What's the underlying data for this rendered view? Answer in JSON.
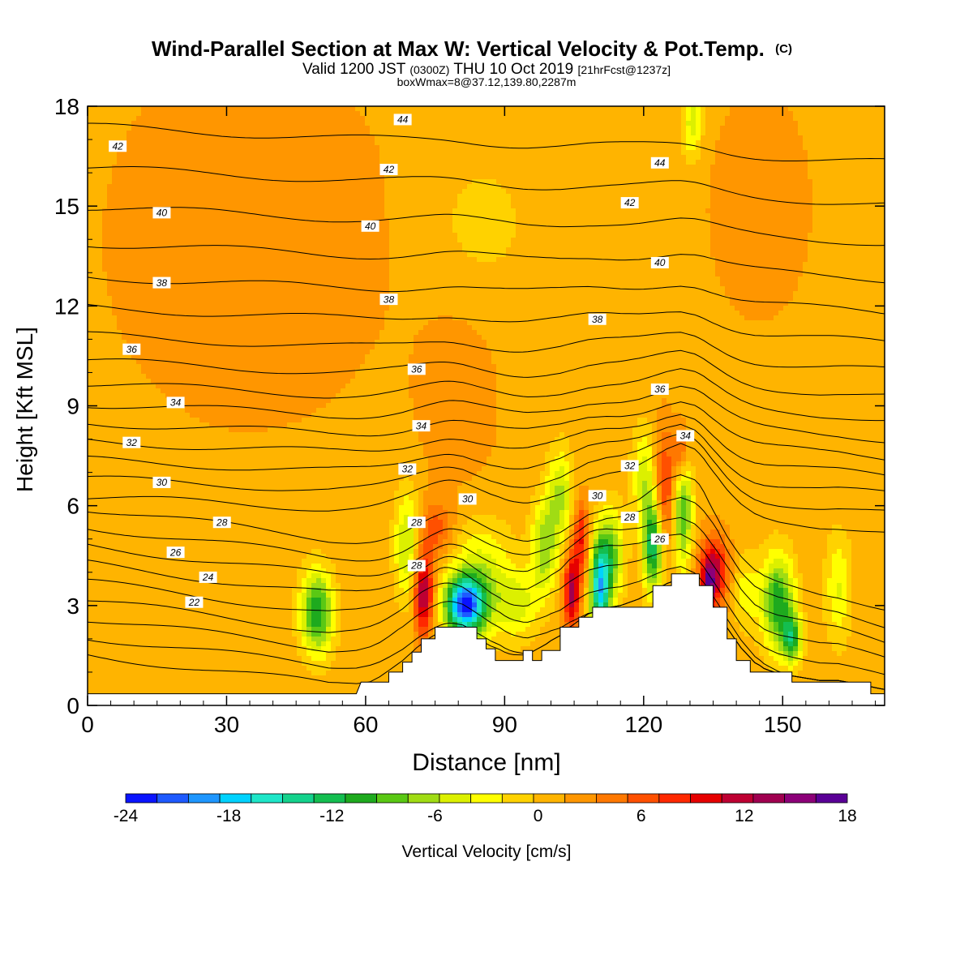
{
  "chart_data": {
    "type": "heatmap",
    "title": "Wind-Parallel Section at Max W: Vertical Velocity & Pot.Temp.",
    "title_mark": "(C)",
    "subtitle_main": "Valid 1200 JST",
    "subtitle_z": "(0300Z)",
    "subtitle_date": "THU 10 Oct 2019",
    "subtitle_fcst": "[21hrFcst@1237z]",
    "subtitle2": "boxWmax=8@37.12,139.80,2287m",
    "xlabel": "Distance [nm]",
    "ylabel": "Height [Kft MSL]",
    "xlim": [
      0,
      172
    ],
    "ylim": [
      0,
      18
    ],
    "x_ticks": [
      "0",
      "30",
      "60",
      "90",
      "120",
      "150"
    ],
    "x_tick_values": [
      0,
      30,
      60,
      90,
      120,
      150
    ],
    "y_ticks": [
      "0",
      "3",
      "6",
      "9",
      "12",
      "15",
      "18"
    ],
    "y_tick_values": [
      0,
      3,
      6,
      9,
      12,
      15,
      18
    ],
    "colorbar": {
      "label": "Vertical Velocity [cm/s]",
      "ticks": [
        "-24",
        "-18",
        "-12",
        "-6",
        "0",
        "6",
        "12",
        "18"
      ],
      "tick_values": [
        -24,
        -18,
        -12,
        -6,
        0,
        6,
        12,
        18
      ],
      "bounds": [
        -24,
        18
      ],
      "colors": [
        "#0a14ff",
        "#1e5aff",
        "#1e96ff",
        "#00d2ff",
        "#1ee6c8",
        "#14d28c",
        "#14be50",
        "#1eaa1e",
        "#5ac814",
        "#a0dc14",
        "#dcf000",
        "#ffff00",
        "#ffd200",
        "#ffb400",
        "#ff9600",
        "#ff7800",
        "#ff5000",
        "#ff2800",
        "#e60000",
        "#be0032",
        "#a00050",
        "#8c0078",
        "#5a0096"
      ]
    },
    "terrain": [
      [
        0,
        0.35
      ],
      [
        57,
        0.35
      ],
      [
        58,
        0.35
      ],
      [
        59,
        0.7
      ],
      [
        65,
        0.7
      ],
      [
        65,
        1.0
      ],
      [
        68,
        1.0
      ],
      [
        68,
        1.3
      ],
      [
        70,
        1.3
      ],
      [
        70,
        1.6
      ],
      [
        72,
        1.6
      ],
      [
        72,
        2.0
      ],
      [
        75,
        2.0
      ],
      [
        75,
        2.35
      ],
      [
        84,
        2.35
      ],
      [
        84,
        2.0
      ],
      [
        86,
        2.0
      ],
      [
        86,
        1.7
      ],
      [
        88,
        1.7
      ],
      [
        88,
        1.35
      ],
      [
        94,
        1.35
      ],
      [
        94,
        1.65
      ],
      [
        96,
        1.65
      ],
      [
        96,
        1.35
      ],
      [
        98,
        1.35
      ],
      [
        98,
        1.65
      ],
      [
        102,
        1.65
      ],
      [
        102,
        2.35
      ],
      [
        106,
        2.35
      ],
      [
        106,
        2.65
      ],
      [
        109,
        2.65
      ],
      [
        109,
        2.95
      ],
      [
        122,
        2.95
      ],
      [
        122,
        3.6
      ],
      [
        126,
        3.6
      ],
      [
        126,
        3.95
      ],
      [
        132,
        3.95
      ],
      [
        132,
        3.6
      ],
      [
        135,
        3.6
      ],
      [
        135,
        2.95
      ],
      [
        138,
        2.95
      ],
      [
        138,
        2.0
      ],
      [
        140,
        2.0
      ],
      [
        140,
        1.35
      ],
      [
        143,
        1.35
      ],
      [
        143,
        1.0
      ],
      [
        152,
        1.0
      ],
      [
        152,
        0.7
      ],
      [
        169,
        0.7
      ],
      [
        169,
        0.35
      ],
      [
        172,
        0.35
      ]
    ],
    "theta_contours": [
      22,
      23,
      24,
      25,
      26,
      27,
      28,
      29,
      30,
      31,
      32,
      33,
      34,
      35,
      36,
      37,
      38,
      39,
      40,
      41,
      42,
      43,
      44,
      45
    ],
    "theta_labels": [
      {
        "t": 22,
        "x": 23,
        "y": 3.1
      },
      {
        "t": 24,
        "x": 26,
        "y": 3.85
      },
      {
        "t": 26,
        "x": 19,
        "y": 4.6
      },
      {
        "t": 28,
        "x": 29,
        "y": 5.5
      },
      {
        "t": 30,
        "x": 16,
        "y": 6.7
      },
      {
        "t": 32,
        "x": 9.5,
        "y": 7.9
      },
      {
        "t": 34,
        "x": 19,
        "y": 9.1
      },
      {
        "t": 36,
        "x": 9.5,
        "y": 10.7
      },
      {
        "t": 38,
        "x": 16,
        "y": 12.7
      },
      {
        "t": 40,
        "x": 16,
        "y": 14.8
      },
      {
        "t": 42,
        "x": 6.5,
        "y": 16.8
      },
      {
        "t": 28,
        "x": 71,
        "y": 4.2
      },
      {
        "t": 28,
        "x": 71,
        "y": 5.5
      },
      {
        "t": 30,
        "x": 82,
        "y": 6.2
      },
      {
        "t": 32,
        "x": 69,
        "y": 7.1
      },
      {
        "t": 34,
        "x": 72,
        "y": 8.4
      },
      {
        "t": 36,
        "x": 71,
        "y": 10.1
      },
      {
        "t": 38,
        "x": 65,
        "y": 12.2
      },
      {
        "t": 40,
        "x": 61,
        "y": 14.4
      },
      {
        "t": 42,
        "x": 65,
        "y": 16.1
      },
      {
        "t": 44,
        "x": 68,
        "y": 17.6
      },
      {
        "t": 30,
        "x": 110,
        "y": 6.3
      },
      {
        "t": 28,
        "x": 117,
        "y": 5.65
      },
      {
        "t": 26,
        "x": 123.5,
        "y": 5.0
      },
      {
        "t": 32,
        "x": 117,
        "y": 7.2
      },
      {
        "t": 34,
        "x": 129,
        "y": 8.1
      },
      {
        "t": 36,
        "x": 123.5,
        "y": 9.5
      },
      {
        "t": 38,
        "x": 110,
        "y": 11.6
      },
      {
        "t": 40,
        "x": 123.5,
        "y": 13.3
      },
      {
        "t": 42,
        "x": 117,
        "y": 15.1
      },
      {
        "t": 44,
        "x": 123.5,
        "y": 16.3
      }
    ],
    "w_features": [
      {
        "x": 72.5,
        "y": 3.4,
        "sx": 1.5,
        "sy": 0.9,
        "w": 13
      },
      {
        "x": 75.5,
        "y": 5.3,
        "sx": 2.5,
        "sy": 0.6,
        "w": 5
      },
      {
        "x": 81.5,
        "y": 3.0,
        "sx": 3.0,
        "sy": 0.6,
        "w": -21
      },
      {
        "x": 85,
        "y": 3.8,
        "sx": 5.0,
        "sy": 1.2,
        "w": -6
      },
      {
        "x": 69,
        "y": 4.8,
        "sx": 2.0,
        "sy": 1.2,
        "w": -7
      },
      {
        "x": 49.5,
        "y": 2.8,
        "sx": 2.5,
        "sy": 0.9,
        "w": -12
      },
      {
        "x": 93,
        "y": 3.0,
        "sx": 3.0,
        "sy": 0.7,
        "w": -5
      },
      {
        "x": 104.5,
        "y": 3.4,
        "sx": 1.2,
        "sy": 0.8,
        "w": 12
      },
      {
        "x": 106.5,
        "y": 5.0,
        "sx": 1.2,
        "sy": 0.8,
        "w": 8
      },
      {
        "x": 98.5,
        "y": 4.7,
        "sx": 2.0,
        "sy": 1.0,
        "w": -8
      },
      {
        "x": 102,
        "y": 6.3,
        "sx": 2.0,
        "sy": 1.0,
        "w": -7
      },
      {
        "x": 110.5,
        "y": 3.5,
        "sx": 1.5,
        "sy": 1.0,
        "w": -17
      },
      {
        "x": 113,
        "y": 4.5,
        "sx": 2.0,
        "sy": 1.0,
        "w": -9
      },
      {
        "x": 124.5,
        "y": 6.5,
        "sx": 1.5,
        "sy": 1.2,
        "w": 7
      },
      {
        "x": 128,
        "y": 7.6,
        "sx": 1.2,
        "sy": 0.6,
        "w": 6
      },
      {
        "x": 122,
        "y": 4.8,
        "sx": 1.5,
        "sy": 1.0,
        "w": -14
      },
      {
        "x": 128.5,
        "y": 5.8,
        "sx": 1.5,
        "sy": 1.2,
        "w": -10
      },
      {
        "x": 120,
        "y": 6.9,
        "sx": 1.8,
        "sy": 1.0,
        "w": -6
      },
      {
        "x": 135,
        "y": 4.0,
        "sx": 2.2,
        "sy": 0.7,
        "w": 12
      },
      {
        "x": 134,
        "y": 3.55,
        "sx": 0.8,
        "sy": 0.4,
        "w": 9
      },
      {
        "x": 142,
        "y": 3.4,
        "sx": 2.0,
        "sy": 0.8,
        "w": -4
      },
      {
        "x": 149,
        "y": 3.1,
        "sx": 2.5,
        "sy": 1.0,
        "w": -12
      },
      {
        "x": 152,
        "y": 2.0,
        "sx": 1.5,
        "sy": 0.5,
        "w": -11
      },
      {
        "x": 162,
        "y": 3.5,
        "sx": 2.0,
        "sy": 1.2,
        "w": -5
      },
      {
        "x": 85,
        "y": 14.5,
        "sx": 8.0,
        "sy": 1.5,
        "w": -2
      },
      {
        "x": 130.5,
        "y": 17.5,
        "sx": 1.5,
        "sy": 0.8,
        "w": -6
      },
      {
        "x": 35,
        "y": 14.0,
        "sx": 22.0,
        "sy": 4.0,
        "w": 1.6
      },
      {
        "x": 80,
        "y": 9.0,
        "sx": 6.0,
        "sy": 2.0,
        "w": 1.5
      },
      {
        "x": 145,
        "y": 15.0,
        "sx": 8.0,
        "sy": 2.5,
        "w": 1.5
      }
    ]
  }
}
